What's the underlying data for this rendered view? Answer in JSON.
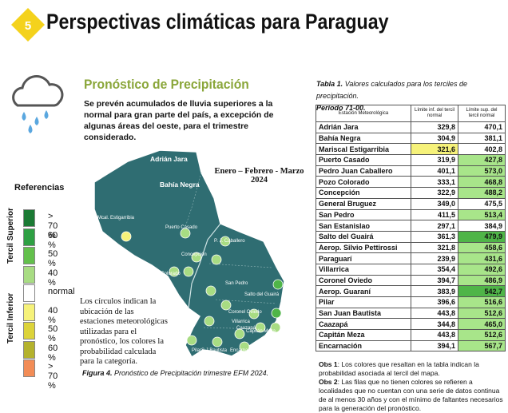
{
  "header": {
    "badge": "5",
    "title": "Perspectivas climáticas para Paraguay"
  },
  "section_title": "Pronóstico de Precipitación",
  "intro": "Se prevén acumulados de lluvia superiores a la normal para gran parte del país, a excepción de algunas áreas del oeste, para el trimestre considerado.",
  "legend": {
    "title": "Referencias",
    "upper": "Tercil Superior",
    "lower": "Tercil Inferior",
    "items": [
      {
        "label": "> 70 %",
        "color": "#1b7a34"
      },
      {
        "label": "60 %",
        "color": "#2ea043"
      },
      {
        "label": "50 %",
        "color": "#63c04c"
      },
      {
        "label": "40 %",
        "color": "#a8dc83"
      },
      {
        "label": "normal",
        "color": "#ffffff"
      },
      {
        "label": "40 %",
        "color": "#f6f27a"
      },
      {
        "label": "50 %",
        "color": "#dcd33a"
      },
      {
        "label": "60 %",
        "color": "#b4b22d"
      },
      {
        "label": "> 70 %",
        "color": "#f28c56"
      }
    ]
  },
  "map": {
    "period": "Enero – Febrero - Marzo 2024",
    "labels": [
      "Adrián Jara",
      "Bahía Negra",
      "Mcal. Estigarribia",
      "Puerto Casado",
      "P. J. Caballero",
      "Concepción",
      "Pozo Colorado",
      "San Pedro",
      "Salto del Guairá",
      "Coronel Oviedo",
      "Villarrica",
      "Caazapá",
      "Capitán Meza",
      "Encarnación",
      "Pilar",
      "S.J.Bautista"
    ],
    "note": "Los círculos indican la ubicación de las estaciones meteorológicas utilizadas para el pronóstico, los colores la probabilidad calculada para la categoría.",
    "caption_label": "Figura 4.",
    "caption": "Pronóstico de Precipitación trimestre EFM 2024."
  },
  "table": {
    "caption_label": "Tabla 1.",
    "caption": "Valores calculados para los terciles de precipitación.",
    "period": "Periodo 71-00.",
    "headers": [
      "Estación Meteorológica",
      "Límite inf. del tercil normal",
      "Límite sup. del tercil normal"
    ],
    "rows": [
      {
        "cells": [
          "Adrián Jara",
          "329,8",
          "470,1"
        ]
      },
      {
        "cells": [
          "Bahía Negra",
          "304,9",
          "381,1"
        ]
      },
      {
        "cells": [
          "Mariscal Estigarribia",
          "321,6",
          "402,8"
        ],
        "highlight": {
          "column": 1,
          "color": "#f6f27a"
        }
      },
      {
        "cells": [
          "Puerto Casado",
          "319,9",
          "427,8"
        ],
        "highlight": {
          "column": 2,
          "color": "#a8e58a"
        }
      },
      {
        "cells": [
          "Pedro Juan Caballero",
          "401,1",
          "573,0"
        ],
        "highlight": {
          "column": 2,
          "color": "#a8e58a"
        }
      },
      {
        "cells": [
          "Pozo Colorado",
          "333,1",
          "468,8"
        ],
        "highlight": {
          "column": 2,
          "color": "#a8e58a"
        }
      },
      {
        "cells": [
          "Concepción",
          "322,9",
          "488,2"
        ],
        "highlight": {
          "column": 2,
          "color": "#a8e58a"
        }
      },
      {
        "cells": [
          "General Bruguez",
          "349,0",
          "475,5"
        ]
      },
      {
        "cells": [
          "San Pedro",
          "411,5",
          "513,4"
        ],
        "highlight": {
          "column": 2,
          "color": "#a8e58a"
        }
      },
      {
        "cells": [
          "San Estanislao",
          "297,1",
          "384,9"
        ]
      },
      {
        "cells": [
          "Salto del Guairá",
          "361,3",
          "479,9"
        ],
        "highlight": {
          "column": 2,
          "color": "#4fb548"
        }
      },
      {
        "cells": [
          "Aerop. Silvio Pettirossi",
          "321,8",
          "458,6"
        ],
        "highlight": {
          "column": 2,
          "color": "#a8e58a"
        }
      },
      {
        "cells": [
          "Paraguarí",
          "239,9",
          "431,6"
        ],
        "highlight": {
          "column": 2,
          "color": "#a8e58a"
        }
      },
      {
        "cells": [
          "Villarrica",
          "354,4",
          "492,6"
        ],
        "highlight": {
          "column": 2,
          "color": "#a8e58a"
        }
      },
      {
        "cells": [
          "Coronel Oviedo",
          "394,7",
          "486,9"
        ],
        "highlight": {
          "column": 2,
          "color": "#a8e58a"
        }
      },
      {
        "cells": [
          "Aerop. Guaraní",
          "383,9",
          "542,7"
        ],
        "highlight": {
          "column": 2,
          "color": "#4fb548"
        }
      },
      {
        "cells": [
          "Pilar",
          "396,6",
          "516,6"
        ],
        "highlight": {
          "column": 2,
          "color": "#a8e58a"
        }
      },
      {
        "cells": [
          "San Juan Bautista",
          "443,8",
          "512,6"
        ],
        "highlight": {
          "column": 2,
          "color": "#a8e58a"
        }
      },
      {
        "cells": [
          "Caazapá",
          "344,8",
          "465,0"
        ],
        "highlight": {
          "column": 2,
          "color": "#a8e58a"
        }
      },
      {
        "cells": [
          "Capitán Meza",
          "443,8",
          "512,6"
        ],
        "highlight": {
          "column": 2,
          "color": "#a8e58a"
        }
      },
      {
        "cells": [
          "Encarnación",
          "394,1",
          "567,7"
        ],
        "highlight": {
          "column": 2,
          "color": "#a8e58a"
        }
      }
    ]
  },
  "notes": [
    {
      "label": "Obs 1",
      "text": ": Los colores que resaltan en la tabla indican la probabilidad asociada al tercil del mapa."
    },
    {
      "label": "Obs 2",
      "text": ": Las filas que no tienen colores se refieren a localidades que no cuentan con una serie de datos continua de al menos 30 años y con el mínimo de faltantes necesarios para la generación del pronóstico."
    }
  ]
}
